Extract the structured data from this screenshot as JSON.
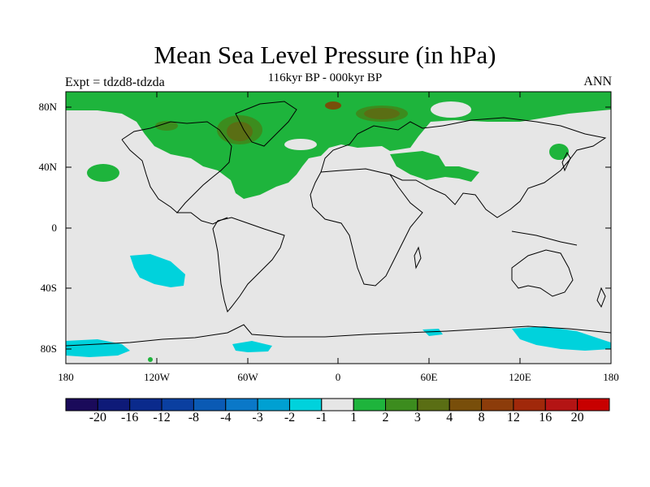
{
  "title": "Mean Sea Level Pressure (in hPa)",
  "subtitle": "116kyr BP - 000kyr BP",
  "experiment_label": "Expt = tdzd8-tdzda",
  "season_label": "ANN",
  "map": {
    "lat_labels": [
      "80N",
      "40N",
      "0",
      "40S",
      "80S"
    ],
    "lon_labels": [
      "180",
      "120W",
      "60W",
      "0",
      "60E",
      "120E",
      "180"
    ],
    "background_color": "#e6e6e6",
    "coastline_color": "#000000"
  },
  "colorbar": {
    "colors": [
      "#1a0a5a",
      "#0e1a78",
      "#0a2a8c",
      "#0a3fa0",
      "#0a5ab4",
      "#0a78c8",
      "#00a0d2",
      "#00d2dc",
      "#e6e6e6",
      "#1eb43c",
      "#3c8c1e",
      "#5a6e14",
      "#784e0a",
      "#8c3c0a",
      "#a0280a",
      "#b41414",
      "#c80000"
    ],
    "labels": [
      "-20",
      "-16",
      "-12",
      "-8",
      "-4",
      "-3",
      "-2",
      "-1",
      "1",
      "2",
      "3",
      "4",
      "8",
      "12",
      "16",
      "20"
    ]
  }
}
